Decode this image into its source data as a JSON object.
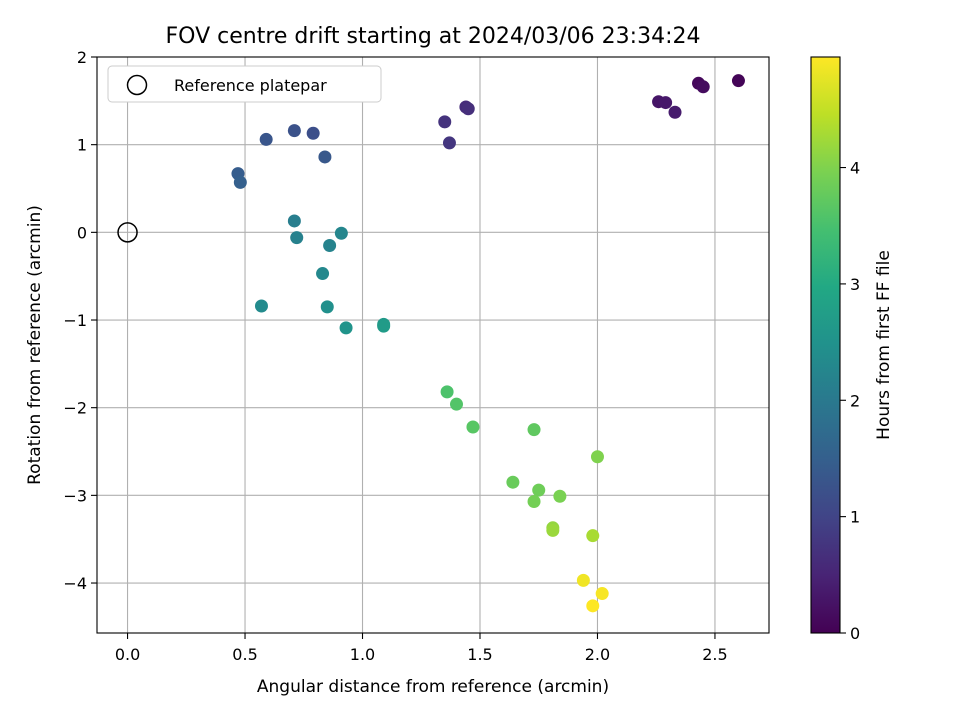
{
  "chart_data": {
    "type": "scatter",
    "title": "FOV centre drift starting at 2024/03/06 23:34:24",
    "xlabel": "Angular distance from reference (arcmin)",
    "ylabel": "Rotation from reference (arcmin)",
    "xlim": [
      -0.13,
      2.73
    ],
    "ylim": [
      -4.57,
      2.0
    ],
    "xticks": [
      0.0,
      0.5,
      1.0,
      1.5,
      2.0,
      2.5
    ],
    "xtick_labels": [
      "0.0",
      "0.5",
      "1.0",
      "1.5",
      "2.0",
      "2.5"
    ],
    "yticks": [
      -4,
      -3,
      -2,
      -1,
      0,
      1,
      2
    ],
    "ytick_labels": [
      "−4",
      "−3",
      "−2",
      "−1",
      "0",
      "1",
      "2"
    ],
    "grid": true,
    "legend": {
      "position": "top-left",
      "entries": [
        {
          "label": "Reference platepar",
          "marker": "open-circle"
        }
      ]
    },
    "reference_point": {
      "x": 0.0,
      "y": 0.0
    },
    "colorbar": {
      "label": "Hours from first FF file",
      "colormap": "viridis",
      "range": [
        0,
        4.95
      ],
      "ticks": [
        0,
        1,
        2,
        3,
        4
      ],
      "tick_labels": [
        "0",
        "1",
        "2",
        "3",
        "4"
      ]
    },
    "points": [
      {
        "x": 2.6,
        "y": 1.73,
        "c": 0.05
      },
      {
        "x": 2.43,
        "y": 1.7,
        "c": 0.1
      },
      {
        "x": 2.45,
        "y": 1.66,
        "c": 0.15
      },
      {
        "x": 2.26,
        "y": 1.49,
        "c": 0.28
      },
      {
        "x": 2.29,
        "y": 1.48,
        "c": 0.33
      },
      {
        "x": 2.33,
        "y": 1.37,
        "c": 0.38
      },
      {
        "x": 1.44,
        "y": 1.43,
        "c": 0.62
      },
      {
        "x": 1.45,
        "y": 1.41,
        "c": 0.67
      },
      {
        "x": 1.35,
        "y": 1.26,
        "c": 0.72
      },
      {
        "x": 1.37,
        "y": 1.02,
        "c": 0.78
      },
      {
        "x": 0.79,
        "y": 1.13,
        "c": 1.2
      },
      {
        "x": 0.71,
        "y": 1.16,
        "c": 1.25
      },
      {
        "x": 0.59,
        "y": 1.06,
        "c": 1.3
      },
      {
        "x": 0.84,
        "y": 0.86,
        "c": 1.35
      },
      {
        "x": 0.47,
        "y": 0.67,
        "c": 1.45
      },
      {
        "x": 0.48,
        "y": 0.57,
        "c": 1.5
      },
      {
        "x": 0.71,
        "y": 0.13,
        "c": 2.1
      },
      {
        "x": 0.72,
        "y": -0.06,
        "c": 2.15
      },
      {
        "x": 0.86,
        "y": -0.15,
        "c": 2.2
      },
      {
        "x": 0.91,
        "y": -0.01,
        "c": 2.25
      },
      {
        "x": 0.83,
        "y": -0.47,
        "c": 2.3
      },
      {
        "x": 0.57,
        "y": -0.84,
        "c": 2.35
      },
      {
        "x": 0.85,
        "y": -0.85,
        "c": 2.45
      },
      {
        "x": 0.93,
        "y": -1.09,
        "c": 2.55
      },
      {
        "x": 1.09,
        "y": -1.05,
        "c": 2.65
      },
      {
        "x": 1.09,
        "y": -1.07,
        "c": 2.7
      },
      {
        "x": 1.36,
        "y": -1.82,
        "c": 3.55
      },
      {
        "x": 1.4,
        "y": -1.96,
        "c": 3.6
      },
      {
        "x": 1.47,
        "y": -2.22,
        "c": 3.65
      },
      {
        "x": 1.73,
        "y": -2.25,
        "c": 3.72
      },
      {
        "x": 1.64,
        "y": -2.85,
        "c": 3.8
      },
      {
        "x": 1.75,
        "y": -2.94,
        "c": 3.85
      },
      {
        "x": 1.73,
        "y": -3.07,
        "c": 3.9
      },
      {
        "x": 1.84,
        "y": -3.01,
        "c": 3.95
      },
      {
        "x": 2.0,
        "y": -2.56,
        "c": 4.0
      },
      {
        "x": 1.81,
        "y": -3.37,
        "c": 4.15
      },
      {
        "x": 1.81,
        "y": -3.4,
        "c": 4.2
      },
      {
        "x": 1.98,
        "y": -3.46,
        "c": 4.3
      },
      {
        "x": 1.94,
        "y": -3.97,
        "c": 4.85
      },
      {
        "x": 2.02,
        "y": -4.12,
        "c": 4.9
      },
      {
        "x": 1.98,
        "y": -4.26,
        "c": 4.95
      }
    ]
  }
}
